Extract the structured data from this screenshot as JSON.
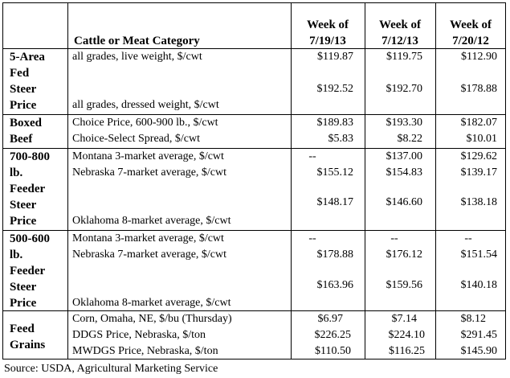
{
  "header": {
    "category_label": "Cattle or Meat Category",
    "columns": [
      {
        "week_label": "Week of",
        "date": "7/19/13"
      },
      {
        "week_label": "Week of",
        "date": "7/12/13"
      },
      {
        "week_label": "Week of",
        "date": "7/20/12"
      }
    ]
  },
  "sections": [
    {
      "title_lines": [
        "5-Area",
        "Fed",
        "Steer",
        "Price"
      ],
      "rows": [
        {
          "label": "all grades, live weight, $/cwt",
          "values": [
            "$119.87",
            "$119.75",
            "$112.90"
          ]
        },
        {
          "label": "all grades, dressed weight, $/cwt",
          "values": [
            "$192.52",
            "$192.70",
            "$178.88"
          ]
        }
      ]
    },
    {
      "title_lines": [
        "Boxed",
        "Beef"
      ],
      "rows": [
        {
          "label": "Choice Price, 600-900 lb., $/cwt",
          "values": [
            "$189.83",
            "$193.30",
            "$182.07"
          ]
        },
        {
          "label": "Choice-Select Spread, $/cwt",
          "values": [
            "$5.83",
            "$8.22",
            "$10.01"
          ]
        }
      ]
    },
    {
      "title_lines": [
        "700-800",
        "lb.",
        "Feeder",
        "Steer",
        "Price"
      ],
      "rows": [
        {
          "label": "Montana 3-market average, $/cwt",
          "values": [
            "--",
            "$137.00",
            "$129.62"
          ]
        },
        {
          "label": "Nebraska 7-market average, $/cwt",
          "values": [
            "$155.12",
            "$154.83",
            "$139.17"
          ]
        },
        {
          "label": "Oklahoma 8-market average, $/cwt",
          "values": [
            "$148.17",
            "$146.60",
            "$138.18"
          ]
        }
      ]
    },
    {
      "title_lines": [
        "500-600",
        "lb.",
        "Feeder",
        "Steer",
        "Price"
      ],
      "rows": [
        {
          "label": "Montana 3-market average, $/cwt",
          "values": [
            "--",
            "--",
            "--"
          ]
        },
        {
          "label": "Nebraska 7-market average, $/cwt",
          "values": [
            "$178.88",
            "$176.12",
            "$151.54"
          ]
        },
        {
          "label": "Oklahoma 8-market average, $/cwt",
          "values": [
            "$163.96",
            "$159.56",
            "$140.18"
          ]
        }
      ]
    },
    {
      "title_lines": [
        "Feed",
        "Grains"
      ],
      "rows": [
        {
          "label": "Corn, Omaha, NE, $/bu (Thursday)",
          "values": [
            "$6.97",
            "$7.14",
            "$8.12"
          ]
        },
        {
          "label": "DDGS Price, Nebraska, $/ton",
          "values": [
            "$226.25",
            "$224.10",
            "$291.45"
          ]
        },
        {
          "label": "MWDGS Price, Nebraska, $/ton",
          "values": [
            "$110.50",
            "$116.25",
            "$145.90"
          ]
        }
      ]
    }
  ],
  "source": "Source: USDA, Agricultural Marketing Service"
}
